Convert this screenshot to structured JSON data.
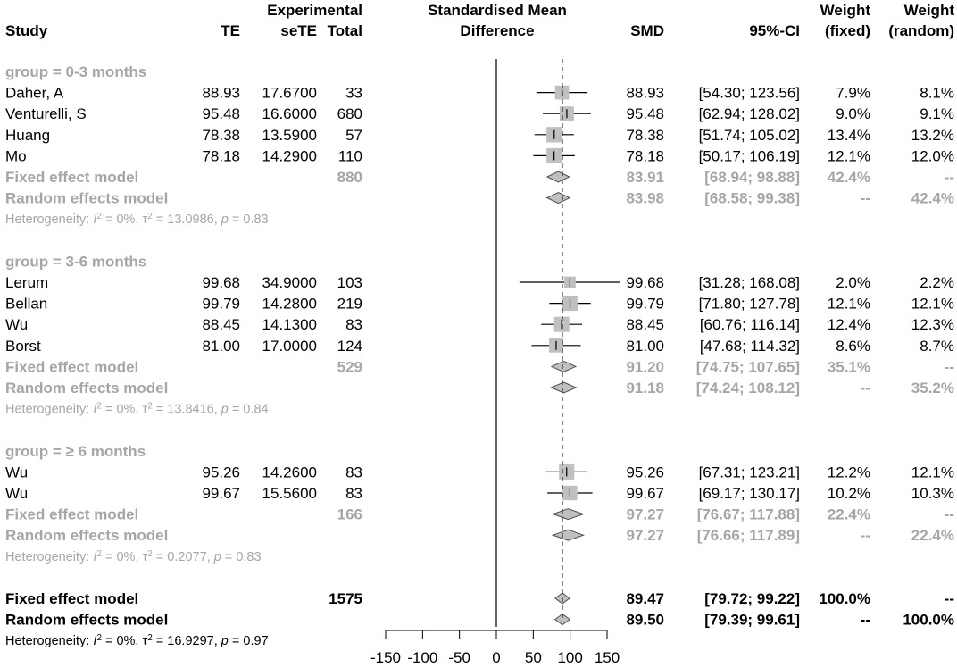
{
  "chart_data": {
    "type": "forest",
    "headers": {
      "study": "Study",
      "te": "TE",
      "experimental": "Experimental",
      "sete": "seTE",
      "total": "Total",
      "smd_title_1": "Standardised Mean",
      "smd_title_2": "Difference",
      "smd": "SMD",
      "ci": "95%-CI",
      "weight": "Weight",
      "fixed": "(fixed)",
      "random": "(random)"
    },
    "xaxis": {
      "ticks": [
        -150,
        -100,
        -50,
        0,
        50,
        100,
        150
      ],
      "tick_labels": [
        "-150",
        "-100",
        "-50",
        "0",
        "50",
        "100",
        "150"
      ],
      "xlim": [
        -150,
        150
      ],
      "reference_line": 0,
      "overall_line": 89.47
    },
    "groups": [
      {
        "label": "group = 0-3 months",
        "studies": [
          {
            "study": "Daher, A",
            "te": "88.93",
            "sete": "17.6700",
            "total": "33",
            "smd": "88.93",
            "ci": "[54.30; 123.56]",
            "wf": "7.9%",
            "wr": "8.1%",
            "est": 88.93,
            "lo": 54.3,
            "hi": 123.56,
            "weight": 7.9
          },
          {
            "study": "Venturelli, S",
            "te": "95.48",
            "sete": "16.6000",
            "total": "680",
            "smd": "95.48",
            "ci": "[62.94; 128.02]",
            "wf": "9.0%",
            "wr": "9.1%",
            "est": 95.48,
            "lo": 62.94,
            "hi": 128.02,
            "weight": 9.0
          },
          {
            "study": "Huang",
            "te": "78.38",
            "sete": "13.5900",
            "total": "57",
            "smd": "78.38",
            "ci": "[51.74; 105.02]",
            "wf": "13.4%",
            "wr": "13.2%",
            "est": 78.38,
            "lo": 51.74,
            "hi": 105.02,
            "weight": 13.4
          },
          {
            "study": "Mo",
            "te": "78.18",
            "sete": "14.2900",
            "total": "110",
            "smd": "78.18",
            "ci": "[50.17; 106.19]",
            "wf": "12.1%",
            "wr": "12.0%",
            "est": 78.18,
            "lo": 50.17,
            "hi": 106.19,
            "weight": 12.1
          }
        ],
        "fixed": {
          "label": "Fixed effect model",
          "total": "880",
          "smd": "83.91",
          "ci": "[68.94; 98.88]",
          "wf": "42.4%",
          "wr": "--",
          "est": 83.91,
          "lo": 68.94,
          "hi": 98.88
        },
        "random": {
          "label": "Random effects model",
          "smd": "83.98",
          "ci": "[68.58; 99.38]",
          "wf": "--",
          "wr": "42.4%",
          "est": 83.98,
          "lo": 68.58,
          "hi": 99.38
        },
        "het": {
          "prefix": "Heterogeneity: ",
          "i2": "I",
          "i2_rest": " = 0%, ",
          "tau": "τ",
          "tau_rest": " = 13.0986, ",
          "p": "p",
          "p_rest": " = 0.83"
        }
      },
      {
        "label": "group = 3-6 months",
        "studies": [
          {
            "study": "Lerum",
            "te": "99.68",
            "sete": "34.9000",
            "total": "103",
            "smd": "99.68",
            "ci": "[31.28; 168.08]",
            "wf": "2.0%",
            "wr": "2.2%",
            "est": 99.68,
            "lo": 31.28,
            "hi": 168.08,
            "weight": 2.0
          },
          {
            "study": "Bellan",
            "te": "99.79",
            "sete": "14.2800",
            "total": "219",
            "smd": "99.79",
            "ci": "[71.80; 127.78]",
            "wf": "12.1%",
            "wr": "12.1%",
            "est": 99.79,
            "lo": 71.8,
            "hi": 127.78,
            "weight": 12.1
          },
          {
            "study": "Wu",
            "te": "88.45",
            "sete": "14.1300",
            "total": "83",
            "smd": "88.45",
            "ci": "[60.76; 116.14]",
            "wf": "12.4%",
            "wr": "12.3%",
            "est": 88.45,
            "lo": 60.76,
            "hi": 116.14,
            "weight": 12.4
          },
          {
            "study": "Borst",
            "te": "81.00",
            "sete": "17.0000",
            "total": "124",
            "smd": "81.00",
            "ci": "[47.68; 114.32]",
            "wf": "8.6%",
            "wr": "8.7%",
            "est": 81.0,
            "lo": 47.68,
            "hi": 114.32,
            "weight": 8.6
          }
        ],
        "fixed": {
          "label": "Fixed effect model",
          "total": "529",
          "smd": "91.20",
          "ci": "[74.75; 107.65]",
          "wf": "35.1%",
          "wr": "--",
          "est": 91.2,
          "lo": 74.75,
          "hi": 107.65
        },
        "random": {
          "label": "Random effects model",
          "smd": "91.18",
          "ci": "[74.24; 108.12]",
          "wf": "--",
          "wr": "35.2%",
          "est": 91.18,
          "lo": 74.24,
          "hi": 108.12
        },
        "het": {
          "prefix": "Heterogeneity: ",
          "i2": "I",
          "i2_rest": " = 0%, ",
          "tau": "τ",
          "tau_rest": " = 13.8416, ",
          "p": "p",
          "p_rest": " = 0.84"
        }
      },
      {
        "label": "group = ≥ 6 months",
        "studies": [
          {
            "study": "Wu",
            "te": "95.26",
            "sete": "14.2600",
            "total": "83",
            "smd": "95.26",
            "ci": "[67.31; 123.21]",
            "wf": "12.2%",
            "wr": "12.1%",
            "est": 95.26,
            "lo": 67.31,
            "hi": 123.21,
            "weight": 12.2
          },
          {
            "study": "Wu",
            "te": "99.67",
            "sete": "15.5600",
            "total": "83",
            "smd": "99.67",
            "ci": "[69.17; 130.17]",
            "wf": "10.2%",
            "wr": "10.3%",
            "est": 99.67,
            "lo": 69.17,
            "hi": 130.17,
            "weight": 10.2
          }
        ],
        "fixed": {
          "label": "Fixed effect model",
          "total": "166",
          "smd": "97.27",
          "ci": "[76.67; 117.88]",
          "wf": "22.4%",
          "wr": "--",
          "est": 97.27,
          "lo": 76.67,
          "hi": 117.88
        },
        "random": {
          "label": "Random effects model",
          "smd": "97.27",
          "ci": "[76.66; 117.89]",
          "wf": "--",
          "wr": "22.4%",
          "est": 97.27,
          "lo": 76.66,
          "hi": 117.89
        },
        "het": {
          "prefix": "Heterogeneity: ",
          "i2": "I",
          "i2_rest": " = 0%, ",
          "tau": "τ",
          "tau_rest": " = 0.2077, ",
          "p": "p",
          "p_rest": " = 0.83"
        }
      }
    ],
    "overall": {
      "fixed": {
        "label": "Fixed effect model",
        "total": "1575",
        "smd": "89.47",
        "ci": "[79.72; 99.22]",
        "wf": "100.0%",
        "wr": "--",
        "est": 89.47,
        "lo": 79.72,
        "hi": 99.22
      },
      "random": {
        "label": "Random effects model",
        "smd": "89.50",
        "ci": "[79.39; 99.61]",
        "wf": "--",
        "wr": "100.0%",
        "est": 89.5,
        "lo": 79.39,
        "hi": 99.61
      },
      "het": {
        "prefix": "Heterogeneity: ",
        "i2": "I",
        "i2_rest": " = 0%, ",
        "tau": "τ",
        "tau_rest": " = 16.9297, ",
        "p": "p",
        "p_rest": " = 0.97"
      }
    },
    "colors": {
      "text": "#000000",
      "subgroup_text": "#a6a6a6",
      "study_box": "#c0c0c0",
      "diamond_fill": "#c0c0c0",
      "diamond_stroke": "#4d4d4d"
    }
  }
}
